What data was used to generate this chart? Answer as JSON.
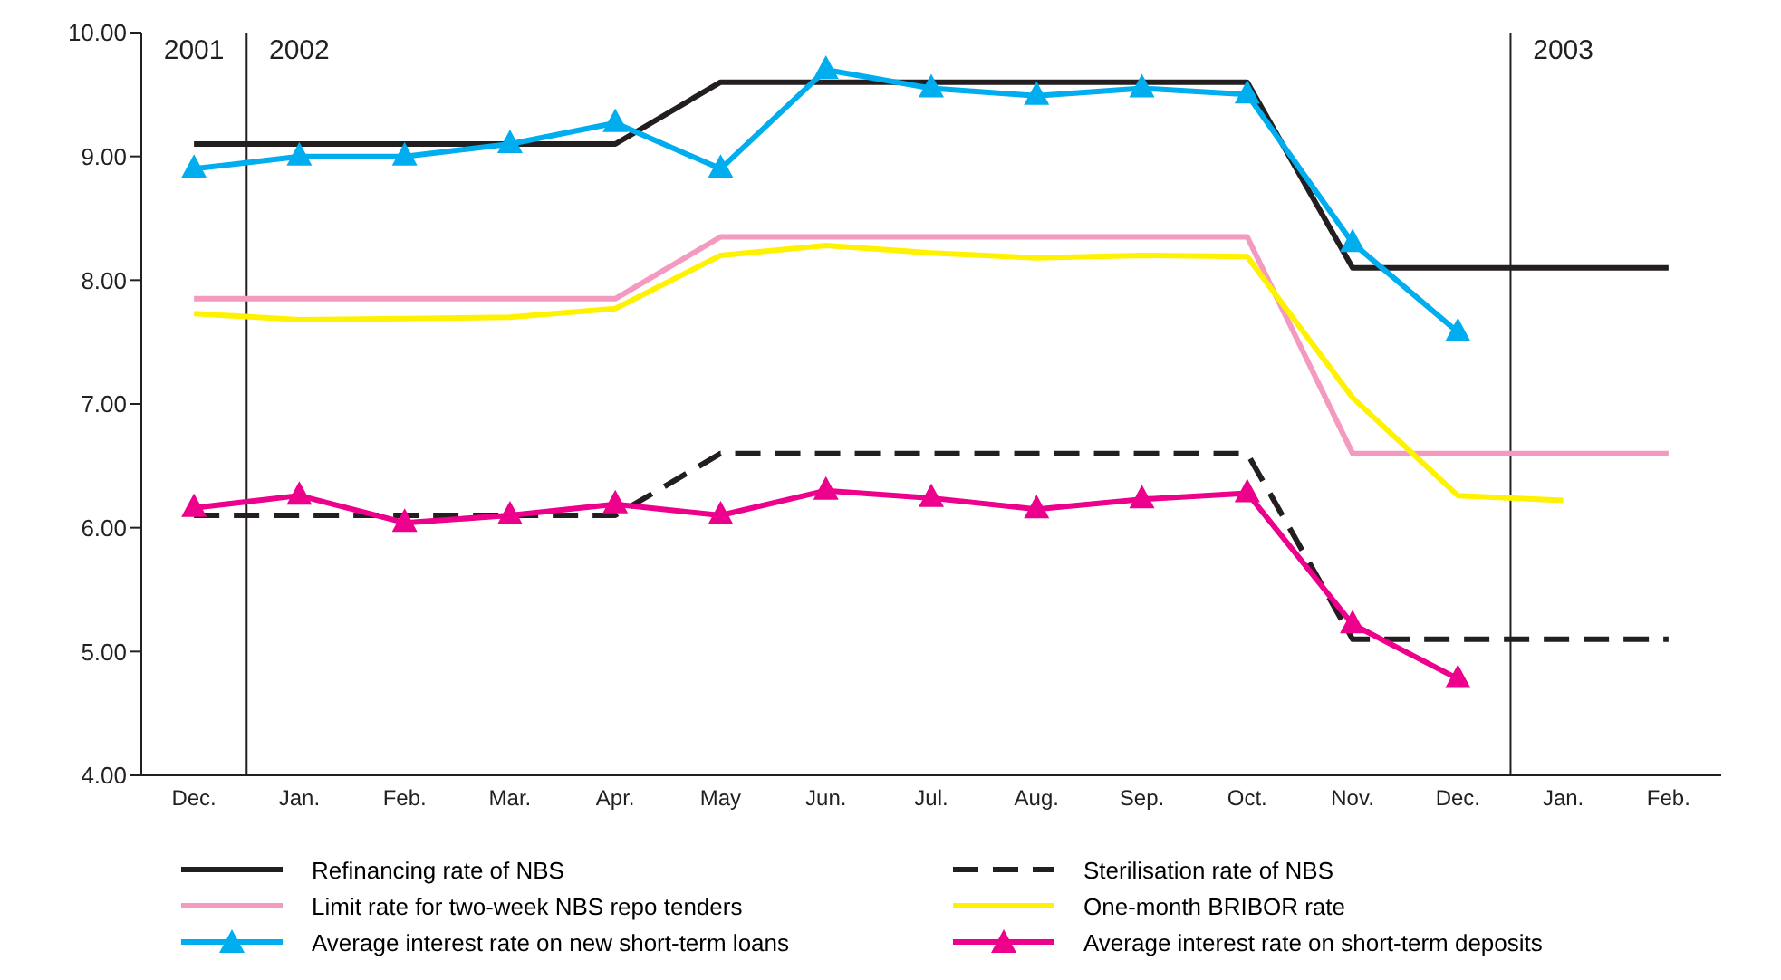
{
  "chart_data": {
    "type": "line",
    "categories": [
      "Dec.",
      "Jan.",
      "Feb.",
      "Mar.",
      "Apr.",
      "May",
      "Jun.",
      "Jul.",
      "Aug.",
      "Sep.",
      "Oct.",
      "Nov.",
      "Dec.",
      "Jan.",
      "Feb."
    ],
    "series": [
      {
        "name": "Refinancing rate of NBS",
        "color": "#231f20",
        "line_style": "solid",
        "marker": "none",
        "values": [
          9.1,
          9.1,
          9.1,
          9.1,
          9.1,
          9.6,
          9.6,
          9.6,
          9.6,
          9.6,
          9.6,
          8.1,
          8.1,
          8.1,
          8.1
        ]
      },
      {
        "name": "Sterilisation rate of NBS",
        "color": "#231f20",
        "line_style": "dashed",
        "marker": "none",
        "values": [
          6.1,
          6.1,
          6.1,
          6.1,
          6.1,
          6.6,
          6.6,
          6.6,
          6.6,
          6.6,
          6.6,
          5.1,
          5.1,
          5.1,
          5.1
        ]
      },
      {
        "name": "Limit rate for two-week NBS repo tenders",
        "color": "#f49ac1",
        "line_style": "solid",
        "marker": "none",
        "values": [
          7.85,
          7.85,
          7.85,
          7.85,
          7.85,
          8.35,
          8.35,
          8.35,
          8.35,
          8.35,
          8.35,
          6.6,
          6.6,
          6.6,
          6.6
        ]
      },
      {
        "name": "One-month BRIBOR rate",
        "color": "#fff200",
        "line_style": "solid",
        "marker": "none",
        "values": [
          7.73,
          7.68,
          7.69,
          7.7,
          7.77,
          8.2,
          8.28,
          8.22,
          8.18,
          8.2,
          8.19,
          7.05,
          6.26,
          6.22,
          null
        ]
      },
      {
        "name": "Average interest rate on new short-term loans",
        "color": "#00aeef",
        "line_style": "solid",
        "marker": "triangle",
        "values": [
          8.9,
          9.0,
          9.0,
          9.1,
          9.27,
          8.9,
          9.7,
          9.55,
          9.49,
          9.55,
          9.5,
          8.3,
          7.58,
          null,
          null
        ]
      },
      {
        "name": "Average interest rate on short-term deposits",
        "color": "#ec008c",
        "line_style": "solid",
        "marker": "triangle",
        "values": [
          6.16,
          6.26,
          6.04,
          6.1,
          6.19,
          6.1,
          6.3,
          6.24,
          6.15,
          6.23,
          6.28,
          5.22,
          4.78,
          null,
          null
        ]
      }
    ],
    "ylim": [
      4,
      10
    ],
    "yticks": [
      {
        "value": 4,
        "label": "4.00"
      },
      {
        "value": 5,
        "label": "5.00"
      },
      {
        "value": 6,
        "label": "6.00"
      },
      {
        "value": 7,
        "label": "7.00"
      },
      {
        "value": 8,
        "label": "8.00"
      },
      {
        "value": 9,
        "label": "9.00"
      },
      {
        "value": 10,
        "label": "10.00"
      }
    ],
    "annotations": [
      "2001",
      "2002",
      "2003"
    ],
    "grid": false,
    "legend": "bottom"
  }
}
